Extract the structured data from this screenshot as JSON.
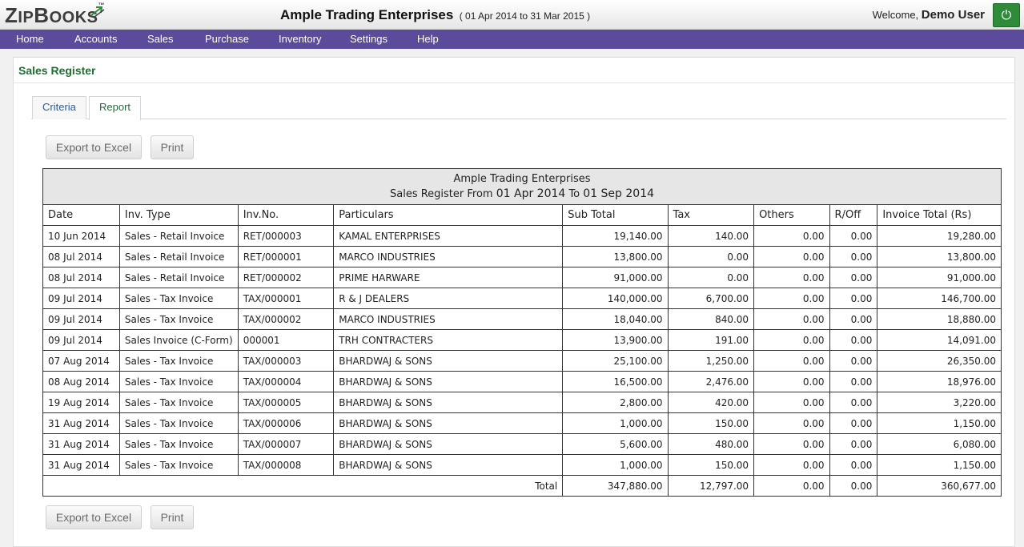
{
  "header": {
    "logo_big_z": "Z",
    "logo_ip": "IP",
    "logo_big_b": "B",
    "logo_ooks": "OOKS",
    "logo_tm": "™",
    "company": "Ample Trading Enterprises",
    "period": "( 01 Apr 2014 to 31 Mar 2015 )",
    "welcome_prefix": "Welcome,",
    "user": "Demo User",
    "power_icon": "⏻"
  },
  "nav": [
    "Home",
    "Accounts",
    "Sales",
    "Purchase",
    "Inventory",
    "Settings",
    "Help"
  ],
  "page": {
    "title": "Sales Register",
    "tabs": [
      "Criteria",
      "Report"
    ],
    "export_label": "Export to Excel",
    "print_label": "Print"
  },
  "report": {
    "company": "Ample Trading Enterprises",
    "subtitle_prefix": "Sales Register From",
    "from_date": "01 Apr 2014",
    "to_word": "To",
    "to_date": "01 Sep 2014",
    "columns": [
      "Date",
      "Inv. Type",
      "Inv.No.",
      "Particulars",
      "Sub Total",
      "Tax",
      "Others",
      "R/Off",
      "Invoice Total (Rs)"
    ],
    "rows": [
      [
        "10 Jun 2014",
        "Sales - Retail Invoice",
        "RET/000003",
        "KAMAL ENTERPRISES",
        "19,140.00",
        "140.00",
        "0.00",
        "0.00",
        "19,280.00"
      ],
      [
        "08 Jul 2014",
        "Sales - Retail Invoice",
        "RET/000001",
        "MARCO INDUSTRIES",
        "13,800.00",
        "0.00",
        "0.00",
        "0.00",
        "13,800.00"
      ],
      [
        "08 Jul 2014",
        "Sales - Retail Invoice",
        "RET/000002",
        "PRIME HARWARE",
        "91,000.00",
        "0.00",
        "0.00",
        "0.00",
        "91,000.00"
      ],
      [
        "09 Jul 2014",
        "Sales - Tax Invoice",
        "TAX/000001",
        "R & J DEALERS",
        "140,000.00",
        "6,700.00",
        "0.00",
        "0.00",
        "146,700.00"
      ],
      [
        "09 Jul 2014",
        "Sales - Tax Invoice",
        "TAX/000002",
        "MARCO INDUSTRIES",
        "18,040.00",
        "840.00",
        "0.00",
        "0.00",
        "18,880.00"
      ],
      [
        "09 Jul 2014",
        "Sales Invoice (C-Form)",
        "000001",
        "TRH CONTRACTERS",
        "13,900.00",
        "191.00",
        "0.00",
        "0.00",
        "14,091.00"
      ],
      [
        "07 Aug 2014",
        "Sales - Tax Invoice",
        "TAX/000003",
        "BHARDWAJ & SONS",
        "25,100.00",
        "1,250.00",
        "0.00",
        "0.00",
        "26,350.00"
      ],
      [
        "08 Aug 2014",
        "Sales - Tax Invoice",
        "TAX/000004",
        "BHARDWAJ & SONS",
        "16,500.00",
        "2,476.00",
        "0.00",
        "0.00",
        "18,976.00"
      ],
      [
        "19 Aug 2014",
        "Sales - Tax Invoice",
        "TAX/000005",
        "BHARDWAJ & SONS",
        "2,800.00",
        "420.00",
        "0.00",
        "0.00",
        "3,220.00"
      ],
      [
        "31 Aug 2014",
        "Sales - Tax Invoice",
        "TAX/000006",
        "BHARDWAJ & SONS",
        "1,000.00",
        "150.00",
        "0.00",
        "0.00",
        "1,150.00"
      ],
      [
        "31 Aug 2014",
        "Sales - Tax Invoice",
        "TAX/000007",
        "BHARDWAJ & SONS",
        "5,600.00",
        "480.00",
        "0.00",
        "0.00",
        "6,080.00"
      ],
      [
        "31 Aug 2014",
        "Sales - Tax Invoice",
        "TAX/000008",
        "BHARDWAJ & SONS",
        "1,000.00",
        "150.00",
        "0.00",
        "0.00",
        "1,150.00"
      ]
    ],
    "total": {
      "label": "Total",
      "values": [
        "347,880.00",
        "12,797.00",
        "0.00",
        "0.00",
        "360,677.00"
      ]
    }
  }
}
